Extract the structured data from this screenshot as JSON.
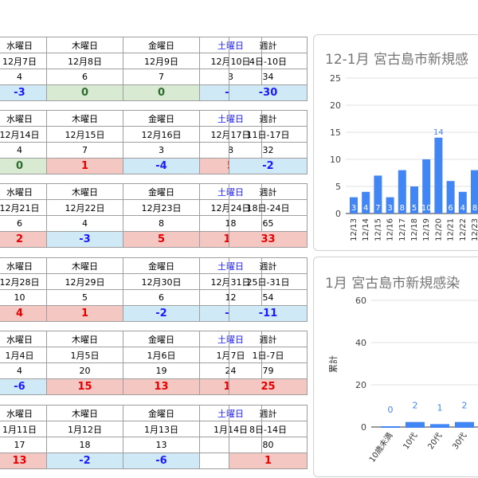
{
  "headers": [
    "水曜日",
    "木曜日",
    "金曜日",
    "土曜日"
  ],
  "weekly_header": "週計",
  "weeks": [
    {
      "dates": [
        "12月7日",
        "12月8日",
        "12月9日",
        "12月10日"
      ],
      "counts": [
        "4",
        "6",
        "7",
        "3"
      ],
      "diffs": [
        "-3",
        "0",
        "0",
        "-7"
      ],
      "week_range": "4日-10日",
      "week_count": "34",
      "week_diff": "-30"
    },
    {
      "dates": [
        "12月14日",
        "12月15日",
        "12月16日",
        "12月17日"
      ],
      "counts": [
        "4",
        "7",
        "3",
        "8"
      ],
      "diffs": [
        "0",
        "1",
        "-4",
        "5"
      ],
      "week_range": "11日-17日",
      "week_count": "32",
      "week_diff": "-2"
    },
    {
      "dates": [
        "12月21日",
        "12月22日",
        "12月23日",
        "12月24日"
      ],
      "counts": [
        "6",
        "4",
        "8",
        "18"
      ],
      "diffs": [
        "2",
        "-3",
        "5",
        "10"
      ],
      "week_range": "18日-24日",
      "week_count": "65",
      "week_diff": "33"
    },
    {
      "dates": [
        "12月28日",
        "12月29日",
        "12月30日",
        "12月31日"
      ],
      "counts": [
        "10",
        "5",
        "6",
        "12"
      ],
      "diffs": [
        "4",
        "1",
        "-2",
        "-6"
      ],
      "week_range": "25日-31日",
      "week_count": "54",
      "week_diff": "-11"
    },
    {
      "dates": [
        "1月4日",
        "1月5日",
        "1月6日",
        "1月7日"
      ],
      "counts": [
        "4",
        "20",
        "19",
        "24"
      ],
      "diffs": [
        "-6",
        "15",
        "13",
        "12"
      ],
      "week_range": "1日-7日",
      "week_count": "79",
      "week_diff": "25"
    },
    {
      "dates": [
        "1月11日",
        "1月12日",
        "1月13日",
        "1月14日"
      ],
      "counts": [
        "17",
        "18",
        "13",
        ""
      ],
      "diffs": [
        "13",
        "-2",
        "-6",
        ""
      ],
      "week_range": "8日-14日",
      "week_count": "80",
      "week_diff": "1"
    }
  ],
  "colors": {
    "positive_bg": "#f4c7c3",
    "positive_fg": "#e60000",
    "negative_bg": "#cfe9f7",
    "negative_fg": "#1a1aff",
    "zero_bg": "#d8ead2",
    "zero_fg": "#2e6b2e",
    "bar": "#4285f4"
  },
  "chart_data": [
    {
      "type": "bar",
      "title": "12-1月 宮古島市新規感",
      "categories": [
        "12/13",
        "12/14",
        "12/15",
        "12/16",
        "12/17",
        "12/18",
        "12/19",
        "12/20",
        "12/21",
        "12/22",
        "12/23"
      ],
      "values": [
        3,
        4,
        7,
        3,
        8,
        5,
        10,
        14,
        6,
        4,
        8
      ],
      "ylim": [
        0,
        25
      ],
      "yticks": [
        0,
        5,
        10,
        15,
        20,
        25
      ]
    },
    {
      "type": "bar",
      "title": "1月 宮古島市新規感染",
      "ylabel": "累計",
      "categories": [
        "10歳未満",
        "10代",
        "20代",
        "30代"
      ],
      "values": [
        0,
        2,
        1,
        2
      ],
      "ylim": [
        0,
        60
      ],
      "yticks": [
        0,
        20,
        40,
        60
      ]
    }
  ]
}
